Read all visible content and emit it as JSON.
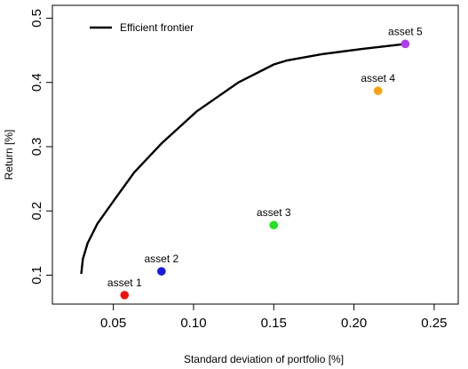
{
  "chart_data": {
    "type": "scatter",
    "xlabel": "Standard deviation of portfolio [%]",
    "ylabel": "Return [%]",
    "xlim": [
      0.012,
      0.265
    ],
    "ylim": [
      0.055,
      0.52
    ],
    "xticks": [
      0.05,
      0.1,
      0.15,
      0.2,
      0.25
    ],
    "xtick_labels": [
      "0.05",
      "0.10",
      "0.15",
      "0.20",
      "0.25"
    ],
    "yticks": [
      0.1,
      0.2,
      0.3,
      0.4,
      0.5
    ],
    "ytick_labels": [
      "0.1",
      "0.2",
      "0.3",
      "0.4",
      "0.5"
    ],
    "grid": false,
    "legend": {
      "position": "top-left",
      "entries": [
        "Efficient frontier"
      ]
    },
    "series": [
      {
        "name": "Efficient frontier",
        "kind": "line",
        "color": "#000000",
        "x": [
          0.03,
          0.031,
          0.034,
          0.04,
          0.05,
          0.063,
          0.08,
          0.102,
          0.128,
          0.15,
          0.158,
          0.18,
          0.205,
          0.232
        ],
        "y": [
          0.102,
          0.125,
          0.15,
          0.18,
          0.215,
          0.26,
          0.305,
          0.355,
          0.4,
          0.428,
          0.434,
          0.444,
          0.452,
          0.46
        ]
      }
    ],
    "points": [
      {
        "label": "asset 1",
        "x": 0.057,
        "y": 0.069,
        "color": "#ee1111"
      },
      {
        "label": "asset 2",
        "x": 0.08,
        "y": 0.106,
        "color": "#1a1adf"
      },
      {
        "label": "asset 3",
        "x": 0.15,
        "y": 0.178,
        "color": "#22e022"
      },
      {
        "label": "asset 4",
        "x": 0.215,
        "y": 0.387,
        "color": "#f5a30f"
      },
      {
        "label": "asset 5",
        "x": 0.232,
        "y": 0.46,
        "color": "#b23aee"
      }
    ]
  }
}
